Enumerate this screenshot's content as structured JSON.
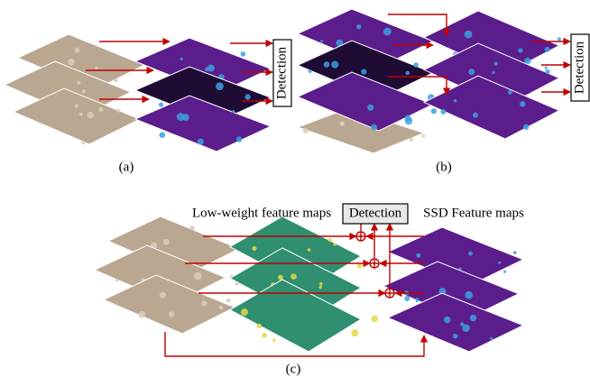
{
  "panels": [
    {
      "label": "(a)",
      "detection": "Detection"
    },
    {
      "label": "(b)",
      "detection": "Detection"
    },
    {
      "label": "(c)",
      "detection": "Detection",
      "left_caption": "Low-weight feature maps",
      "right_caption": "SSD Feature maps"
    }
  ]
}
